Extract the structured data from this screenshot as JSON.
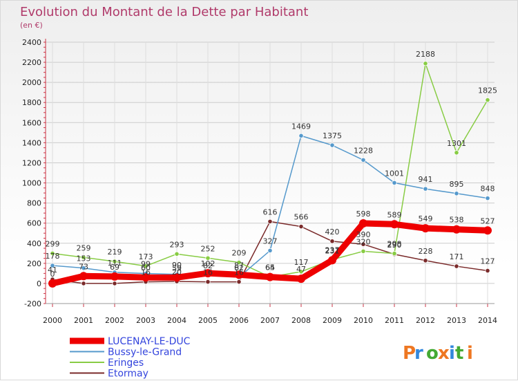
{
  "chart_data": {
    "type": "line",
    "title": "Evolution du Montant de la Dette par Habitant",
    "subtitle": "(en €)",
    "x": [
      2000,
      2001,
      2002,
      2003,
      2004,
      2005,
      2006,
      2007,
      2008,
      2009,
      2010,
      2011,
      2012,
      2013,
      2014
    ],
    "ylim": [
      -200,
      2400
    ],
    "yticks": [
      -200,
      0,
      200,
      400,
      600,
      800,
      1000,
      1200,
      1400,
      1600,
      1800,
      2000,
      2200,
      2400
    ],
    "grid": true,
    "legend_position": "bottom-left",
    "series": [
      {
        "name": "Etormay",
        "color": "#7a2a2a",
        "values": [
          41,
          0,
          0,
          16,
          20,
          16,
          16,
          616,
          566,
          420,
          390,
          290,
          228,
          171,
          127
        ],
        "labels": [
          "41",
          "",
          "",
          "16",
          "20",
          "16",
          "16",
          "616",
          "566",
          "420",
          "390",
          "290",
          "228",
          "171",
          "127"
        ]
      },
      {
        "name": "Eringes",
        "color": "#88cc44",
        "values": [
          299,
          259,
          219,
          173,
          293,
          252,
          209,
          65,
          117,
          237,
          320,
          298,
          2188,
          1301,
          1825
        ],
        "labels": [
          "299",
          "259",
          "219",
          "173",
          "293",
          "252",
          "209",
          "65",
          "117",
          "237",
          "320",
          "298",
          "2188",
          "1301",
          "1825"
        ]
      },
      {
        "name": "Bussy-le-Grand",
        "color": "#5599cc",
        "values": [
          178,
          153,
          111,
          99,
          90,
          82,
          62,
          327,
          1469,
          1375,
          1228,
          1001,
          941,
          895,
          848
        ],
        "labels": [
          "178",
          "153",
          "111",
          "99",
          "90",
          "82",
          "62",
          "327",
          "1469",
          "1375",
          "1228",
          "1001",
          "941",
          "895",
          "848"
        ]
      },
      {
        "name": "LUCENAY-LE-DUC",
        "color": "#ee0000",
        "values": [
          0,
          73,
          69,
          60,
          59,
          102,
          87,
          64,
          47,
          231,
          598,
          589,
          549,
          538,
          527
        ],
        "labels": [
          "0",
          "73",
          "69",
          "60",
          "59",
          "102",
          "87",
          "64",
          "47",
          "231",
          "598",
          "589",
          "549",
          "538",
          "527"
        ]
      }
    ],
    "legend_order": [
      "LUCENAY-LE-DUC",
      "Bussy-le-Grand",
      "Eringes",
      "Etormay"
    ]
  },
  "logo": {
    "text": "Proxiti"
  }
}
